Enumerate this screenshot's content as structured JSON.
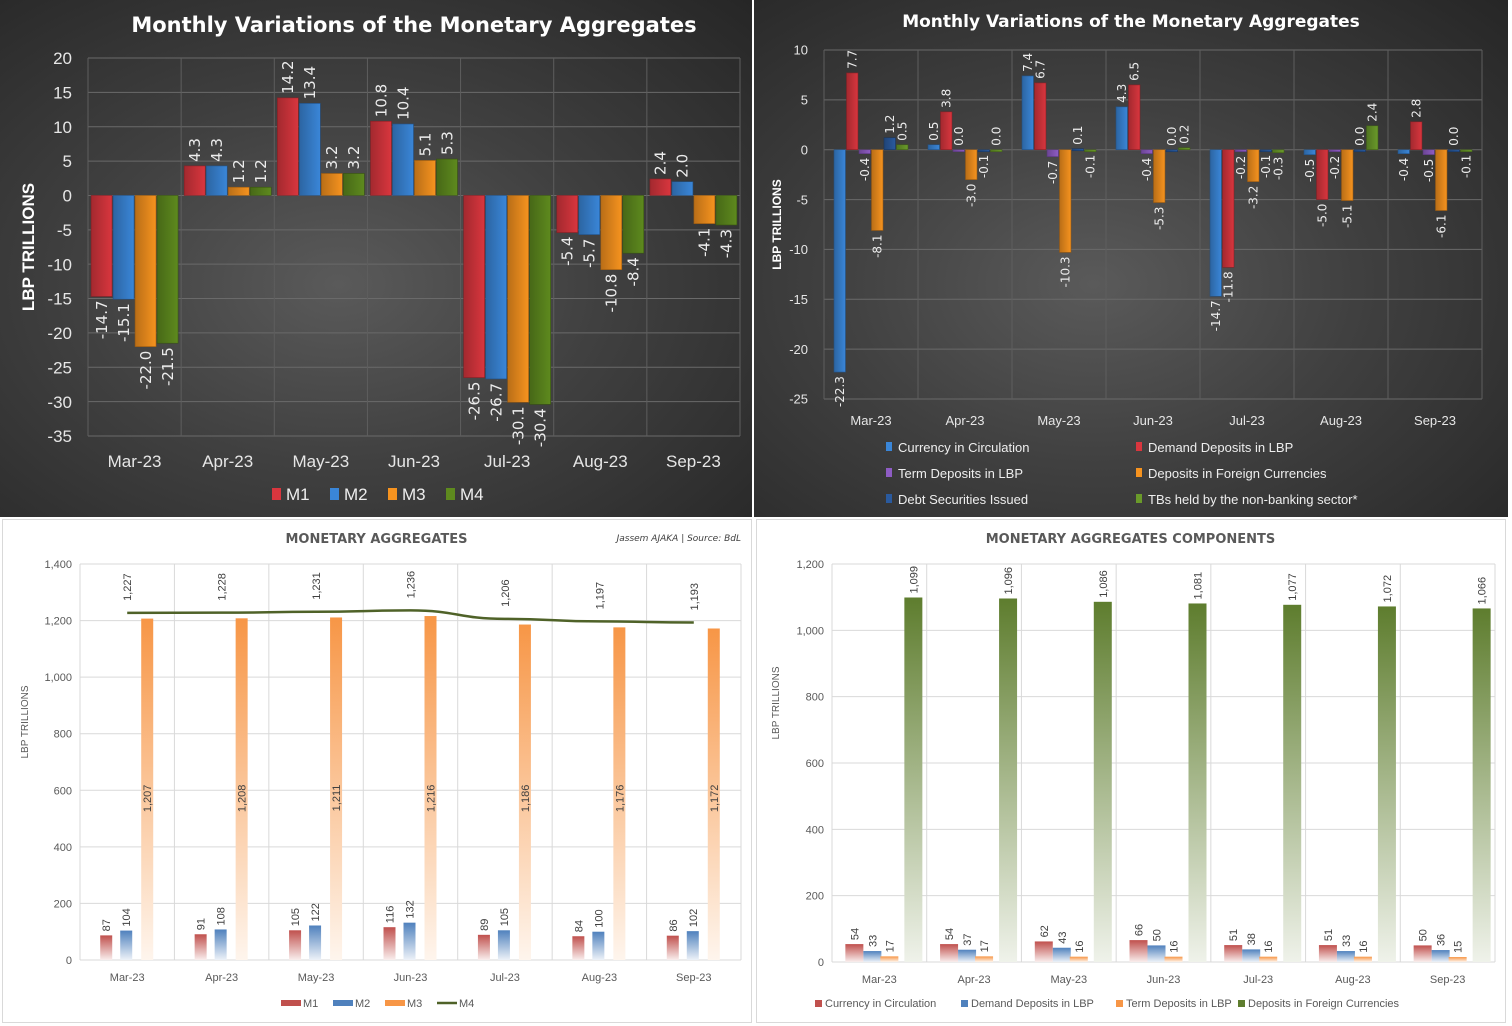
{
  "chart_data": [
    {
      "id": "variations-aggregates",
      "type": "bar",
      "title": "Monthly Variations of the Monetary Aggregates",
      "xlabel": "",
      "ylabel": "LBP TRILLIONS",
      "ylim": [
        -35,
        20
      ],
      "yticks": [
        20,
        15,
        10,
        5,
        0,
        -5,
        -10,
        -15,
        -20,
        -25,
        -30,
        -35
      ],
      "grid": true,
      "legend": "bottom",
      "categories": [
        "Mar-23",
        "Apr-23",
        "May-23",
        "Jun-23",
        "Jul-23",
        "Aug-23",
        "Sep-23"
      ],
      "series": [
        {
          "name": "M1",
          "color": "#d9363e",
          "values": [
            -14.7,
            4.3,
            14.2,
            10.8,
            -26.5,
            -5.4,
            2.4
          ]
        },
        {
          "name": "M2",
          "color": "#3a86d8",
          "values": [
            -15.1,
            4.3,
            13.4,
            10.4,
            -26.7,
            -5.7,
            2.0
          ]
        },
        {
          "name": "M3",
          "color": "#f6931f",
          "values": [
            -22.0,
            1.2,
            3.2,
            5.1,
            -30.1,
            -10.8,
            -4.1
          ]
        },
        {
          "name": "M4",
          "color": "#5e8a1e",
          "values": [
            -21.5,
            1.2,
            3.2,
            5.3,
            -30.4,
            -8.4,
            -4.3
          ]
        }
      ]
    },
    {
      "id": "variations-components",
      "type": "bar",
      "title": "Monthly Variations of the Monetary Aggregates",
      "xlabel": "",
      "ylabel": "LBP TRILLIONS",
      "ylim": [
        -25,
        10
      ],
      "yticks": [
        10,
        5,
        0,
        -5,
        -10,
        -15,
        -20,
        -25
      ],
      "grid": true,
      "legend": "bottom",
      "categories": [
        "Mar-23",
        "Apr-23",
        "May-23",
        "Jun-23",
        "Jul-23",
        "Aug-23",
        "Sep-23"
      ],
      "series": [
        {
          "name": "Currency in Circulation",
          "color": "#3a86d8",
          "values": [
            -22.3,
            0.5,
            7.4,
            4.3,
            -14.7,
            -0.5,
            -0.4
          ]
        },
        {
          "name": "Demand Deposits in LBP",
          "color": "#d9363e",
          "values": [
            7.7,
            3.8,
            6.7,
            6.5,
            -11.8,
            -5.0,
            2.8
          ]
        },
        {
          "name": "Term Deposits in LBP",
          "color": "#8e5cc4",
          "values": [
            -0.4,
            0.0,
            -0.7,
            -0.4,
            -0.2,
            -0.2,
            -0.5
          ]
        },
        {
          "name": "Deposits in Foreign Currencies",
          "color": "#f6931f",
          "values": [
            -8.1,
            -3.0,
            -10.3,
            -5.3,
            -3.2,
            -5.1,
            -6.1
          ]
        },
        {
          "name": "Debt Securities Issued",
          "color": "#2a5a9e",
          "values": [
            1.2,
            -0.1,
            0.1,
            0.0,
            -0.1,
            0.0,
            0.0
          ]
        },
        {
          "name": "TBs held by the non-banking sector*",
          "color": "#6a9a2a",
          "values": [
            0.5,
            0.0,
            -0.1,
            0.2,
            -0.3,
            2.4,
            -0.1
          ]
        }
      ]
    },
    {
      "id": "monetary-aggregates",
      "type": "bar",
      "title": "MONETARY AGGREGATES",
      "subtitle": "Jassem AJAKA | Source: BdL",
      "xlabel": "",
      "ylabel": "LBP TRILLIONS",
      "ylim": [
        0,
        1400
      ],
      "yticks": [
        0,
        200,
        400,
        600,
        800,
        1000,
        1200,
        1400
      ],
      "ytick_labels": [
        "0",
        "200",
        "400",
        "600",
        "800",
        "1,000",
        "1,200",
        "1,400"
      ],
      "grid": true,
      "legend": "bottom",
      "categories": [
        "Mar-23",
        "Apr-23",
        "May-23",
        "Jun-23",
        "Jul-23",
        "Aug-23",
        "Sep-23"
      ],
      "series": [
        {
          "name": "M1",
          "kind": "bar",
          "color": "#c0504d",
          "values": [
            87,
            91,
            105,
            116,
            89,
            84,
            86
          ],
          "labels": [
            "87",
            "91",
            "105",
            "116",
            "89",
            "84",
            "86"
          ]
        },
        {
          "name": "M2",
          "kind": "bar",
          "color": "#4f81bd",
          "values": [
            104,
            108,
            122,
            132,
            105,
            100,
            102
          ],
          "labels": [
            "104",
            "108",
            "122",
            "132",
            "105",
            "100",
            "102"
          ]
        },
        {
          "name": "M3",
          "kind": "bar",
          "color": "#f79646",
          "values": [
            1207,
            1208,
            1211,
            1216,
            1186,
            1176,
            1172
          ],
          "labels": [
            "1,207",
            "1,208",
            "1,211",
            "1,216",
            "1,186",
            "1,176",
            "1,172"
          ]
        },
        {
          "name": "M4",
          "kind": "line",
          "color": "#4f6228",
          "values": [
            1227,
            1228,
            1231,
            1236,
            1206,
            1197,
            1193
          ],
          "labels": [
            "1,227",
            "1,228",
            "1,231",
            "1,236",
            "1,206",
            "1,197",
            "1,193"
          ]
        }
      ]
    },
    {
      "id": "aggregates-components",
      "type": "bar",
      "title": "MONETARY AGGREGATES COMPONENTS",
      "xlabel": "",
      "ylabel": "LBP TRILLIONS",
      "ylim": [
        0,
        1200
      ],
      "yticks": [
        0,
        200,
        400,
        600,
        800,
        1000,
        1200
      ],
      "ytick_labels": [
        "0",
        "200",
        "400",
        "600",
        "800",
        "1,000",
        "1,200"
      ],
      "grid": true,
      "legend": "bottom",
      "categories": [
        "Mar-23",
        "Apr-23",
        "May-23",
        "Jun-23",
        "Jul-23",
        "Aug-23",
        "Sep-23"
      ],
      "series": [
        {
          "name": "Currency in Circulation",
          "color": "#c0504d",
          "values": [
            54,
            54,
            62,
            66,
            51,
            51,
            50
          ],
          "labels": [
            "54",
            "54",
            "62",
            "66",
            "51",
            "51",
            "50"
          ]
        },
        {
          "name": "Demand Deposits in LBP",
          "color": "#4f81bd",
          "values": [
            33,
            37,
            43,
            50,
            38,
            33,
            36
          ],
          "labels": [
            "33",
            "37",
            "43",
            "50",
            "38",
            "33",
            "36"
          ]
        },
        {
          "name": "Term Deposits in LBP",
          "color": "#f79646",
          "values": [
            17,
            17,
            16,
            16,
            16,
            16,
            15
          ],
          "labels": [
            "17",
            "17",
            "16",
            "16",
            "16",
            "16",
            "15"
          ]
        },
        {
          "name": "Deposits in Foreign Currencies",
          "color": "#5e7d2e",
          "values": [
            1099,
            1096,
            1086,
            1081,
            1077,
            1072,
            1066
          ],
          "labels": [
            "1,099",
            "1,096",
            "1,086",
            "1,081",
            "1,077",
            "1,072",
            "1,066"
          ]
        }
      ]
    }
  ]
}
